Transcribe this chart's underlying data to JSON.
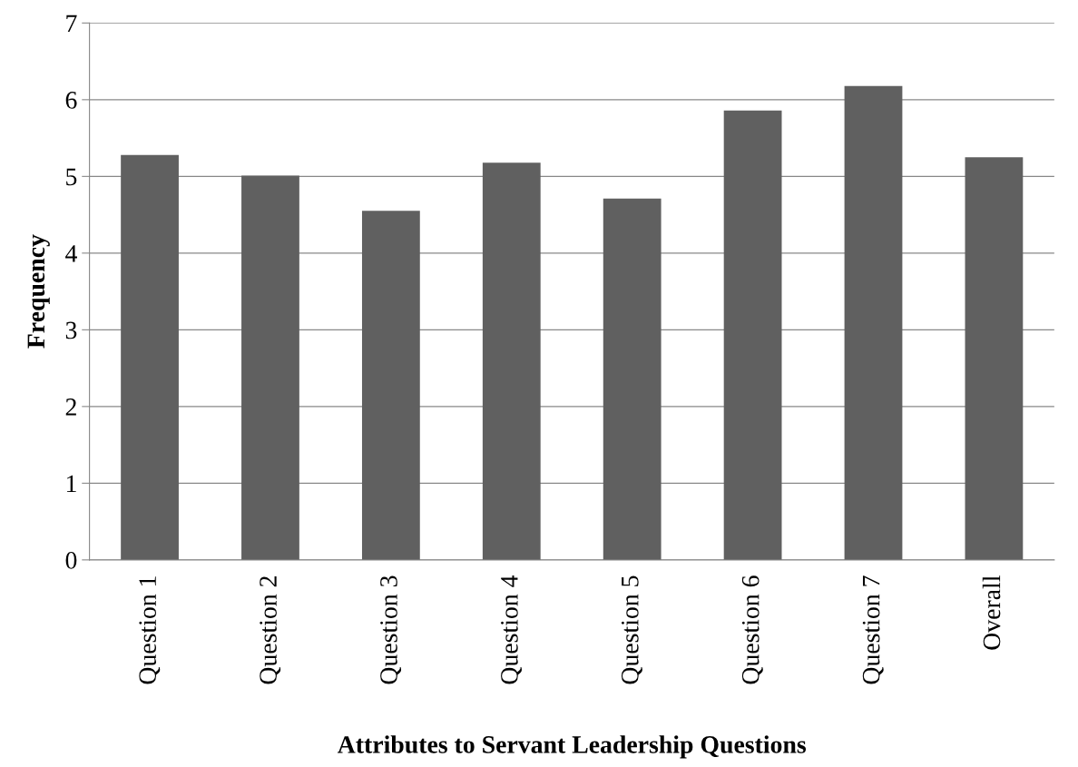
{
  "chart_data": {
    "type": "bar",
    "xlabel": "Attributes to Servant Leadership Questions",
    "ylabel": "Frequency",
    "categories": [
      "Question 1",
      "Question 2",
      "Question 3",
      "Question 4",
      "Question 5",
      "Question 6",
      "Question 7",
      "Overall"
    ],
    "values": [
      5.28,
      5.01,
      4.55,
      5.18,
      4.71,
      5.86,
      6.18,
      5.25
    ],
    "color": "#606060",
    "ylim": [
      0,
      7
    ],
    "yticks": [
      0,
      1,
      2,
      3,
      4,
      5,
      6,
      7
    ],
    "grid": "y",
    "legend": false
  }
}
